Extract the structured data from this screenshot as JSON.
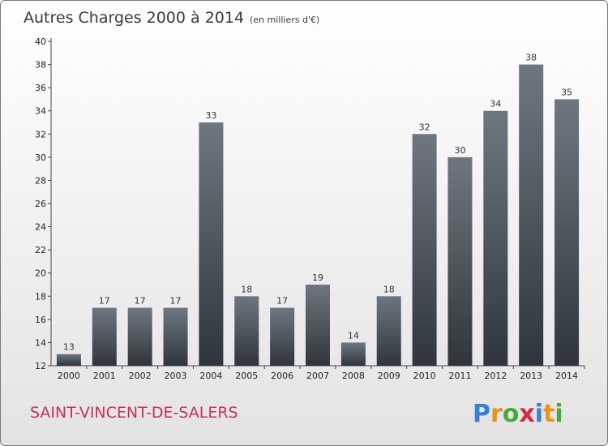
{
  "header": {
    "title": "Autres Charges 2000 à 2014",
    "subtitle": "(en milliers d'€)"
  },
  "footer": {
    "place": "SAINT-VINCENT-DE-SALERS",
    "logo_letters": [
      "P",
      "r",
      "o",
      "x",
      "i",
      "t",
      "i"
    ]
  },
  "colors": {
    "bar_top": "#6e7780",
    "bar_bottom": "#2f353c",
    "place": "#c0335a",
    "logo": [
      "#3a7fd4",
      "#e8931b",
      "#4aa83c",
      "#d6264a",
      "#3a7fd4",
      "#e8931b",
      "#4aa83c"
    ]
  },
  "chart_data": {
    "type": "bar",
    "title": "Autres Charges 2000 à 2014",
    "subtitle": "(en milliers d'€)",
    "categories": [
      "2000",
      "2001",
      "2002",
      "2003",
      "2004",
      "2005",
      "2006",
      "2007",
      "2008",
      "2009",
      "2010",
      "2011",
      "2012",
      "2013",
      "2014"
    ],
    "values": [
      13,
      17,
      17,
      17,
      33,
      18,
      17,
      19,
      14,
      18,
      32,
      30,
      34,
      38,
      35
    ],
    "ylim": [
      12,
      40
    ],
    "yticks": [
      12,
      14,
      16,
      18,
      20,
      22,
      24,
      26,
      28,
      30,
      32,
      34,
      36,
      38,
      40
    ],
    "grid": false,
    "legend": "none"
  }
}
